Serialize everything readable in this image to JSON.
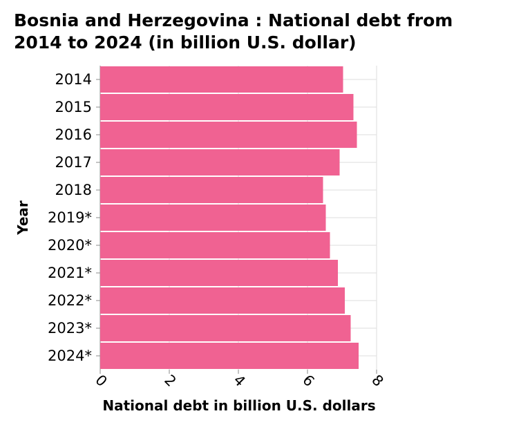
{
  "chart_data": {
    "type": "bar",
    "orientation": "horizontal",
    "title": "Bosnia and Herzegovina : National debt from\n2014 to 2024 (in billion U.S. dollar)",
    "xlabel": "National debt in billion U.S. dollars",
    "ylabel": "Year",
    "categories": [
      "2014",
      "2015",
      "2016",
      "2017",
      "2018",
      "2019*",
      "2020*",
      "2021*",
      "2022*",
      "2023*",
      "2024*"
    ],
    "values": [
      7.03,
      7.33,
      7.43,
      6.93,
      6.45,
      6.53,
      6.65,
      6.88,
      7.08,
      7.25,
      7.48
    ],
    "xlim": [
      0,
      8
    ],
    "xticks": [
      "0",
      "2",
      "4",
      "6",
      "8"
    ],
    "grid": true,
    "bar_color": "#f06292"
  }
}
